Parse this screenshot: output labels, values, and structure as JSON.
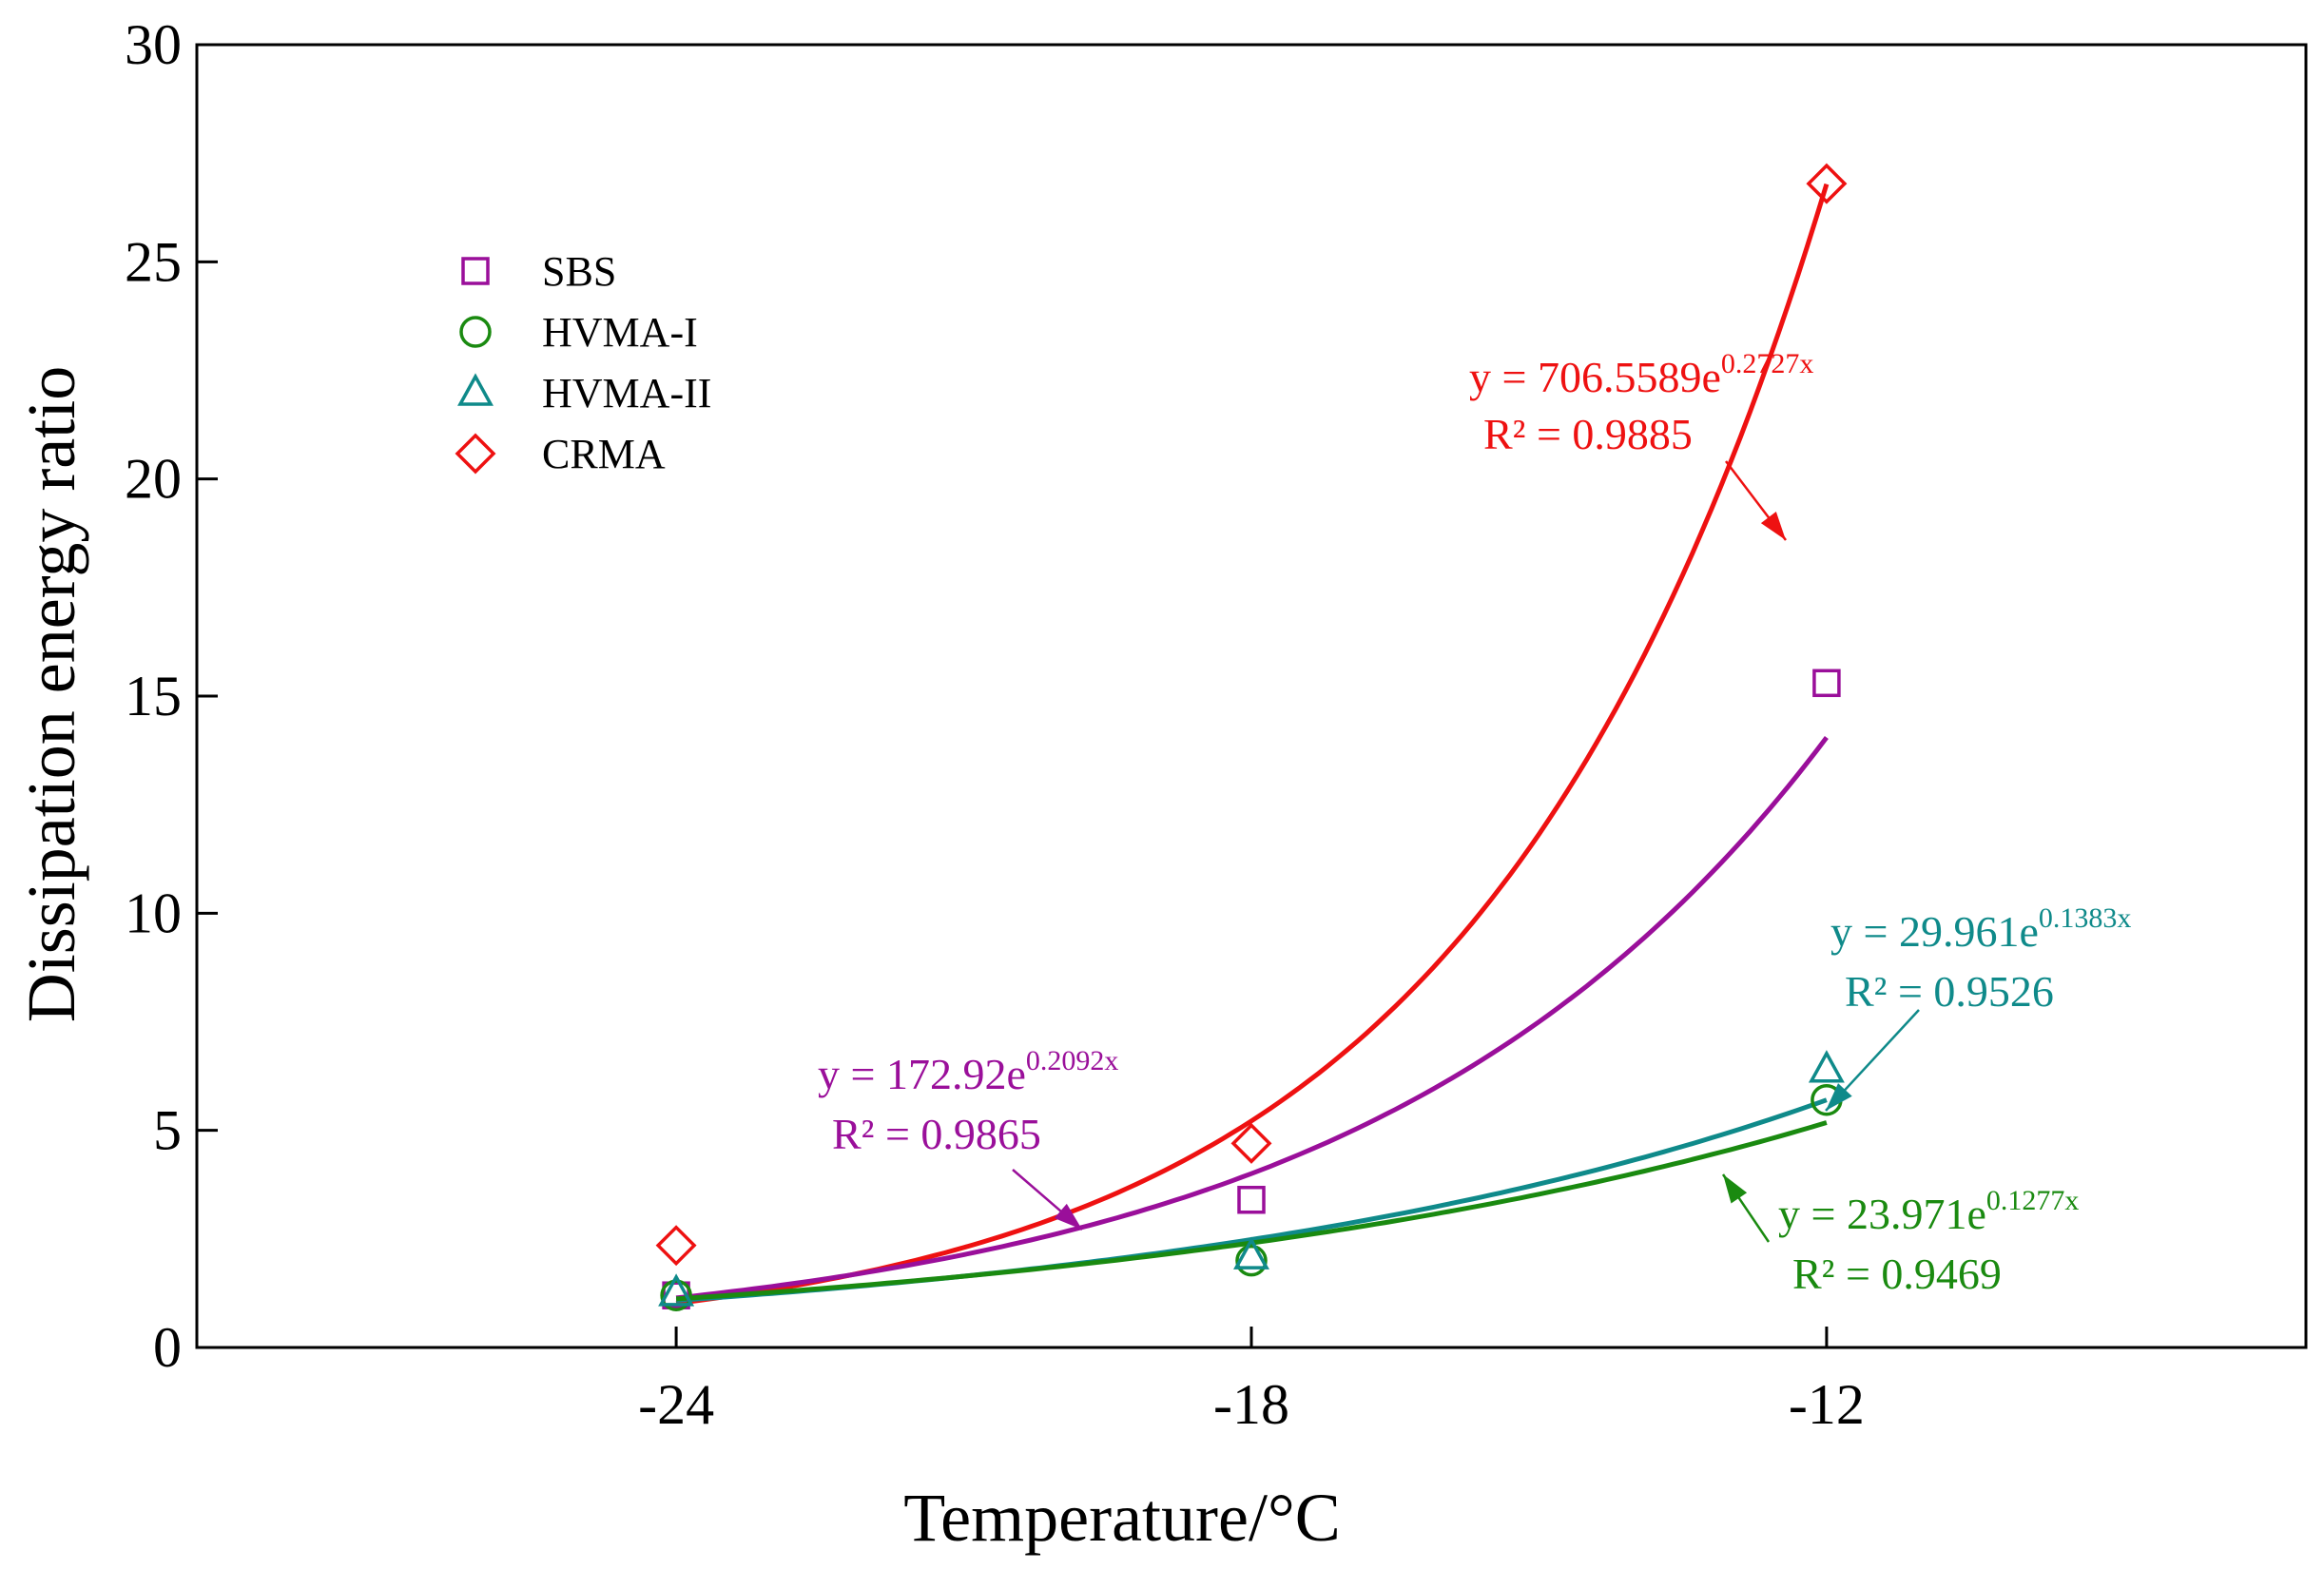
{
  "chart_data": {
    "type": "scatter",
    "xlabel": "Temperature/°C",
    "ylabel": "Dissipation energy ratio",
    "xlim": [
      -29,
      -7
    ],
    "ylim": [
      0,
      30
    ],
    "xticks": [
      -24,
      -18,
      -12
    ],
    "xtick_labels": [
      "-24",
      "-18",
      "-12"
    ],
    "yticks": [
      0,
      5,
      10,
      15,
      20,
      25,
      30
    ],
    "ytick_labels": [
      "0",
      "5",
      "10",
      "15",
      "20",
      "25",
      "30"
    ],
    "legend_position": "upper-left",
    "series": [
      {
        "name": "SBS",
        "marker": "square",
        "color": "#9a0f9a",
        "x": [
          -24,
          -18,
          -12
        ],
        "values": [
          1.2,
          3.4,
          15.3
        ],
        "fit": {
          "a": 172.92,
          "b": 0.2092
        },
        "equation": {
          "prefix": "y = 172.92e",
          "exponent": "0.2092x",
          "r2": "R² = 0.9865"
        }
      },
      {
        "name": "HVMA-I",
        "marker": "circle",
        "color": "#1a8a10",
        "x": [
          -24,
          -18,
          -12
        ],
        "values": [
          1.2,
          2.0,
          5.7
        ],
        "fit": {
          "a": 23.971,
          "b": 0.1277
        },
        "equation": {
          "prefix": "y = 23.971e",
          "exponent": "0.1277x",
          "r2": "R² = 0.9469"
        }
      },
      {
        "name": "HVMA-II",
        "marker": "triangle",
        "color": "#0f8a8a",
        "x": [
          -24,
          -18,
          -12
        ],
        "values": [
          1.25,
          2.1,
          6.4
        ],
        "fit": {
          "a": 29.961,
          "b": 0.1383
        },
        "equation": {
          "prefix": "y = 29.961e",
          "exponent": "0.1383x",
          "r2": "R² = 0.9526"
        }
      },
      {
        "name": "CRMA",
        "marker": "diamond",
        "color": "#ee1111",
        "x": [
          -24,
          -18,
          -12
        ],
        "values": [
          2.35,
          4.7,
          26.8
        ],
        "fit": {
          "a": 706.5589,
          "b": 0.2727
        },
        "equation": {
          "prefix": "y = 706.5589e",
          "exponent": "0.2727x",
          "r2": "R² = 0.9885"
        }
      }
    ]
  }
}
